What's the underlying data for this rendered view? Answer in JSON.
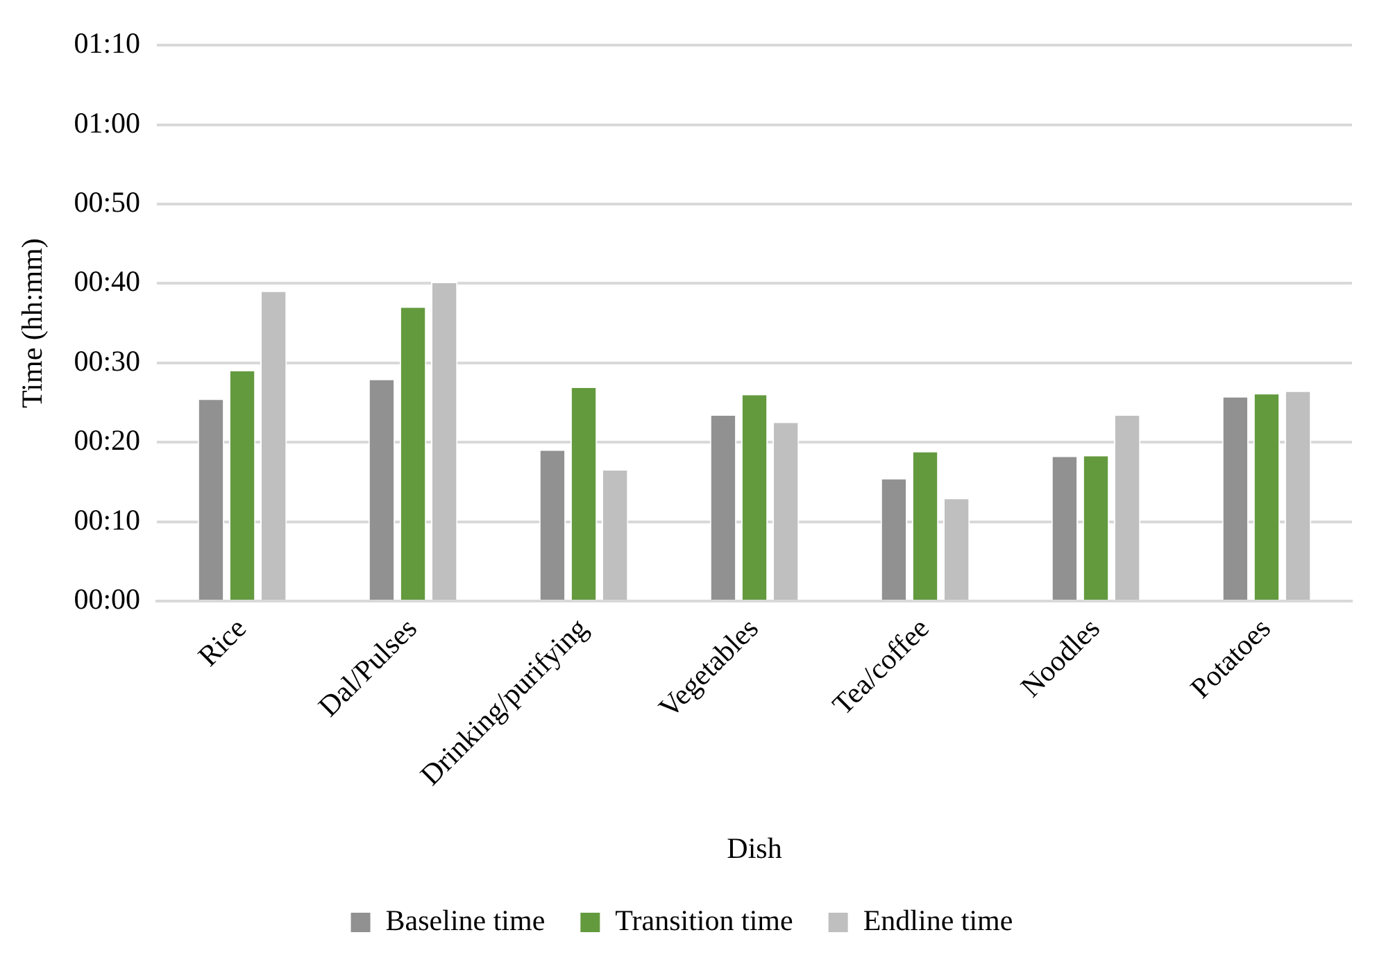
{
  "chart_data": {
    "type": "bar",
    "xlabel": "Dish",
    "ylabel": "Time (hh:mm)",
    "categories": [
      "Rice",
      "Dal/Pulses",
      "Drinking/purifying",
      "Vegetables",
      "Tea/coffee",
      "Noodles",
      "Potatoes"
    ],
    "series": [
      {
        "name": "Baseline time",
        "color": "#919191",
        "values": [
          25.5,
          28.0,
          19.1,
          23.5,
          15.5,
          18.3,
          25.8
        ]
      },
      {
        "name": "Transition time",
        "color": "#639a3e",
        "values": [
          29.1,
          37.1,
          27.0,
          26.1,
          18.9,
          18.4,
          26.2
        ]
      },
      {
        "name": "Endline time",
        "color": "#bfbfbf",
        "values": [
          39.1,
          40.2,
          16.6,
          22.6,
          13.0,
          23.5,
          26.5
        ]
      }
    ],
    "ylim": [
      0,
      70
    ],
    "yticks": [
      {
        "value": 0,
        "label": "00:00"
      },
      {
        "value": 10,
        "label": "00:10"
      },
      {
        "value": 20,
        "label": "00:20"
      },
      {
        "value": 30,
        "label": "00:30"
      },
      {
        "value": 40,
        "label": "00:40"
      },
      {
        "value": 50,
        "label": "00:50"
      },
      {
        "value": 60,
        "label": "01:00"
      },
      {
        "value": 70,
        "label": "01:10"
      }
    ],
    "grid": "y",
    "legend": "bottom"
  }
}
